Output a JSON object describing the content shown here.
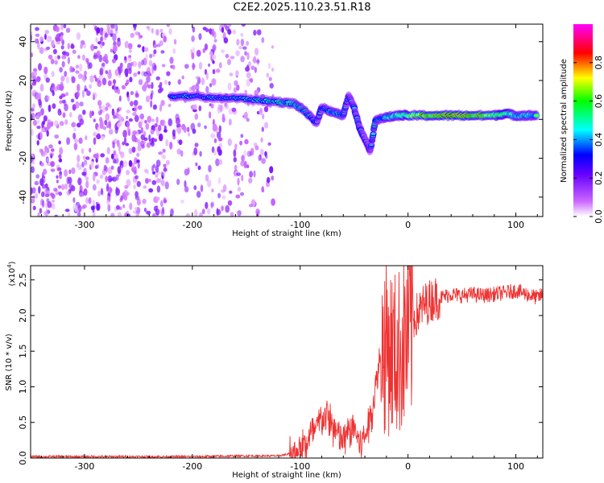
{
  "title": "C2E2.2025.110.23.51.R18",
  "chart_data": [
    {
      "type": "heatmap",
      "xlabel": "Height of straight line (km)",
      "ylabel": "Frequency (Hz)",
      "xlim": [
        -350,
        125
      ],
      "ylim": [
        -50,
        49
      ],
      "xticks": [
        -300,
        -200,
        -100,
        0,
        100
      ],
      "yticks": [
        -40,
        -20,
        0,
        20,
        40
      ],
      "colorbar": {
        "label": "Normalized spectral amplitude",
        "range": [
          0.0,
          1.0
        ],
        "ticks": [
          0.0,
          0.2,
          0.4,
          0.6,
          0.8
        ],
        "tick_labels": [
          "0.0",
          "0.2",
          "0.4",
          "0.6",
          "0.8"
        ],
        "colors": [
          "#ffffff",
          "#cc66ff",
          "#6600ff",
          "#0000ff",
          "#00ffff",
          "#00ff00",
          "#ffff00",
          "#ff0000",
          "#ff00ff"
        ]
      },
      "noise_region": {
        "x": [
          -350,
          -125
        ],
        "y": [
          -50,
          49
        ],
        "typical_amplitude": 0.15
      },
      "ridge": [
        {
          "x": -220,
          "y": 12,
          "amp": 0.45
        },
        {
          "x": -200,
          "y": 12,
          "amp": 0.5
        },
        {
          "x": -180,
          "y": 11,
          "amp": 0.45
        },
        {
          "x": -160,
          "y": 11,
          "amp": 0.5
        },
        {
          "x": -140,
          "y": 10,
          "amp": 0.5
        },
        {
          "x": -120,
          "y": 9,
          "amp": 0.6
        },
        {
          "x": -105,
          "y": 8,
          "amp": 0.6
        },
        {
          "x": -95,
          "y": 4,
          "amp": 0.55
        },
        {
          "x": -85,
          "y": -2,
          "amp": 0.5
        },
        {
          "x": -80,
          "y": 6,
          "amp": 0.5
        },
        {
          "x": -70,
          "y": 4,
          "amp": 0.6
        },
        {
          "x": -60,
          "y": 2,
          "amp": 0.55
        },
        {
          "x": -55,
          "y": 12,
          "amp": 0.45
        },
        {
          "x": -50,
          "y": 6,
          "amp": 0.5
        },
        {
          "x": -45,
          "y": -4,
          "amp": 0.5
        },
        {
          "x": -40,
          "y": -10,
          "amp": 0.45
        },
        {
          "x": -35,
          "y": -16,
          "amp": 0.4
        },
        {
          "x": -30,
          "y": 0,
          "amp": 0.55
        },
        {
          "x": -20,
          "y": 1,
          "amp": 0.6
        },
        {
          "x": -10,
          "y": 2,
          "amp": 0.7
        },
        {
          "x": 0,
          "y": 2,
          "amp": 0.75
        },
        {
          "x": 20,
          "y": 2,
          "amp": 0.85
        },
        {
          "x": 40,
          "y": 2,
          "amp": 0.9
        },
        {
          "x": 60,
          "y": 2,
          "amp": 0.9
        },
        {
          "x": 80,
          "y": 2,
          "amp": 0.75
        },
        {
          "x": 90,
          "y": 3,
          "amp": 0.8
        },
        {
          "x": 100,
          "y": 2,
          "amp": 0.6
        },
        {
          "x": 110,
          "y": 2,
          "amp": 0.65
        },
        {
          "x": 120,
          "y": 2,
          "amp": 0.6
        }
      ]
    },
    {
      "type": "line",
      "xlabel": "Height of straight line (km)",
      "ylabel": "SNR (10 * v/v)",
      "yscale_label": "(x10",
      "yscale_exp": "4",
      "xlim": [
        -350,
        125
      ],
      "ylim": [
        0,
        2.7
      ],
      "xticks": [
        -300,
        -200,
        -100,
        0,
        100
      ],
      "yticks": [
        0.0,
        0.5,
        1.0,
        1.5,
        2.0,
        2.5
      ],
      "ytick_labels": [
        "0.0",
        "0.5",
        "1.0",
        "1.5",
        "2.0",
        "2.5"
      ],
      "color": "#ee3333",
      "x": [
        -350,
        -300,
        -250,
        -200,
        -150,
        -120,
        -110,
        -100,
        -95,
        -90,
        -85,
        -80,
        -75,
        -70,
        -65,
        -60,
        -55,
        -50,
        -45,
        -40,
        -35,
        -30,
        -25,
        -20,
        -15,
        -10,
        -5,
        0,
        5,
        10,
        15,
        20,
        25,
        30,
        40,
        50,
        60,
        70,
        80,
        90,
        100,
        110,
        120,
        125
      ],
      "y": [
        0.02,
        0.02,
        0.02,
        0.02,
        0.03,
        0.03,
        0.06,
        0.1,
        0.2,
        0.3,
        0.4,
        0.55,
        0.6,
        0.45,
        0.3,
        0.25,
        0.35,
        0.45,
        0.2,
        0.3,
        0.55,
        1.0,
        1.5,
        1.6,
        1.5,
        1.45,
        1.6,
        1.75,
        1.95,
        2.05,
        2.15,
        2.2,
        2.25,
        2.25,
        2.3,
        2.28,
        2.3,
        2.28,
        2.3,
        2.32,
        2.35,
        2.3,
        2.25,
        2.3
      ]
    }
  ]
}
